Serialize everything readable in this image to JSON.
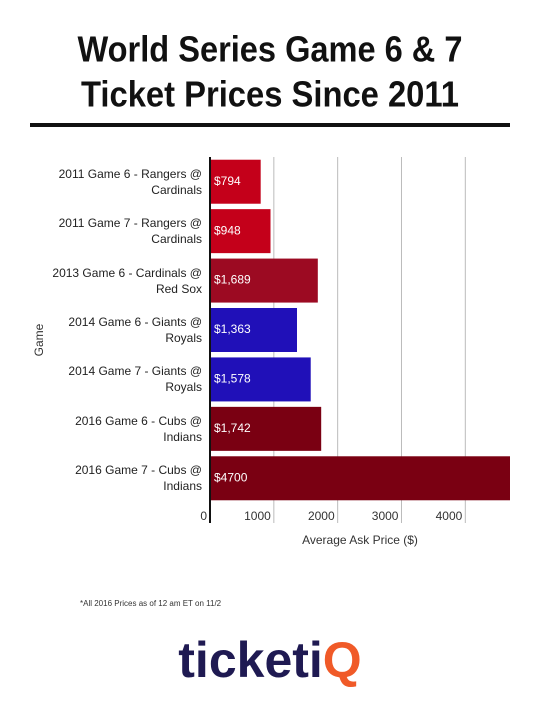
{
  "chart_data": {
    "type": "hbar",
    "title": [
      "World Series Game 6 & 7",
      "Ticket Prices Since 2011"
    ],
    "categories": [
      "2011 Game 6 - Rangers @ Cardinals",
      "2011 Game 7 - Rangers @ Cardinals",
      "2013 Game 6 - Cardinals @ Red Sox",
      "2014 Game 6 - Giants @ Royals",
      "2014 Game 7 - Giants @ Royals",
      "2016 Game 6 - Cubs @ Indians",
      "2016 Game 7 - Cubs @ Indians"
    ],
    "values": [
      794,
      948,
      1689,
      1363,
      1578,
      1742,
      4700
    ],
    "value_labels": [
      "$794",
      "$948",
      "$1,689",
      "$1,363",
      "$1,578",
      "$1,742",
      "$4700"
    ],
    "colors": [
      "#c4001a",
      "#c4001a",
      "#9c0a22",
      "#2010b8",
      "#2010b8",
      "#7a0012",
      "#7a0012"
    ],
    "xlim": [
      0,
      4700
    ],
    "xticks": [
      0,
      1000,
      2000,
      3000,
      4000
    ],
    "grid": true,
    "x_label": "Average Ask Price ($)",
    "y_label": "Game"
  },
  "footnote": "*All 2016 Prices as of 12 am ET on 11/2",
  "logo": [
    "ticketi",
    "Q"
  ]
}
